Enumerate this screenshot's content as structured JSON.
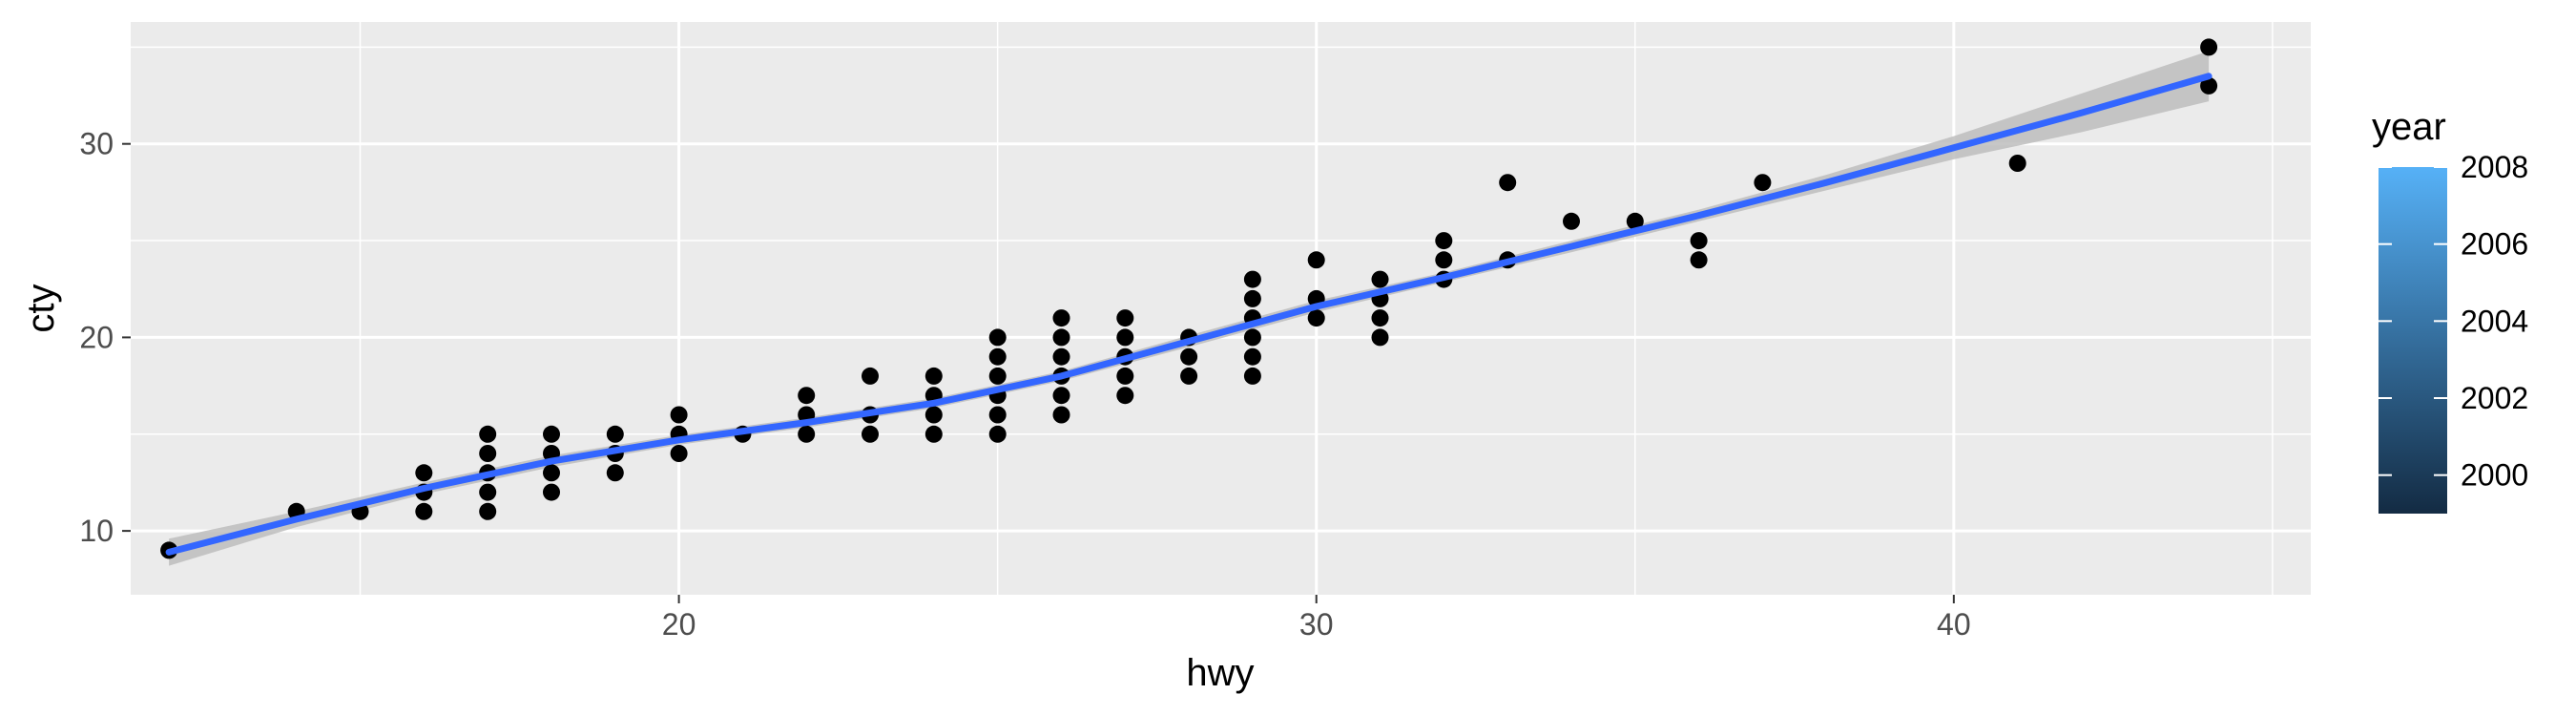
{
  "chart_data": {
    "type": "scatter",
    "xlabel": "hwy",
    "ylabel": "cty",
    "xlim": [
      11.4,
      45.6
    ],
    "ylim": [
      6.7,
      36.3
    ],
    "x_ticks": [
      20,
      30,
      40
    ],
    "y_ticks": [
      10,
      20,
      30
    ],
    "grid": true,
    "point_color": "#000000",
    "points": [
      [
        12,
        9
      ],
      [
        14,
        11
      ],
      [
        15,
        11
      ],
      [
        16,
        11
      ],
      [
        16,
        12
      ],
      [
        16,
        13
      ],
      [
        17,
        11
      ],
      [
        17,
        12
      ],
      [
        17,
        13
      ],
      [
        17,
        14
      ],
      [
        17,
        15
      ],
      [
        18,
        12
      ],
      [
        18,
        13
      ],
      [
        18,
        14
      ],
      [
        18,
        15
      ],
      [
        19,
        13
      ],
      [
        19,
        14
      ],
      [
        19,
        15
      ],
      [
        20,
        14
      ],
      [
        20,
        15
      ],
      [
        20,
        16
      ],
      [
        21,
        15
      ],
      [
        22,
        15
      ],
      [
        22,
        16
      ],
      [
        22,
        17
      ],
      [
        23,
        15
      ],
      [
        23,
        16
      ],
      [
        23,
        18
      ],
      [
        24,
        15
      ],
      [
        24,
        16
      ],
      [
        24,
        17
      ],
      [
        24,
        18
      ],
      [
        25,
        15
      ],
      [
        25,
        16
      ],
      [
        25,
        17
      ],
      [
        25,
        18
      ],
      [
        25,
        19
      ],
      [
        25,
        20
      ],
      [
        26,
        16
      ],
      [
        26,
        17
      ],
      [
        26,
        18
      ],
      [
        26,
        19
      ],
      [
        26,
        20
      ],
      [
        26,
        21
      ],
      [
        27,
        17
      ],
      [
        27,
        18
      ],
      [
        27,
        19
      ],
      [
        27,
        20
      ],
      [
        27,
        21
      ],
      [
        28,
        18
      ],
      [
        28,
        19
      ],
      [
        28,
        20
      ],
      [
        29,
        18
      ],
      [
        29,
        19
      ],
      [
        29,
        20
      ],
      [
        29,
        21
      ],
      [
        29,
        22
      ],
      [
        29,
        23
      ],
      [
        30,
        21
      ],
      [
        30,
        22
      ],
      [
        30,
        24
      ],
      [
        31,
        20
      ],
      [
        31,
        21
      ],
      [
        31,
        22
      ],
      [
        31,
        23
      ],
      [
        32,
        23
      ],
      [
        32,
        24
      ],
      [
        32,
        25
      ],
      [
        33,
        24
      ],
      [
        33,
        28
      ],
      [
        34,
        26
      ],
      [
        35,
        26
      ],
      [
        36,
        24
      ],
      [
        36,
        25
      ],
      [
        37,
        28
      ],
      [
        41,
        29
      ],
      [
        44,
        33
      ],
      [
        44,
        35
      ]
    ],
    "smooth": {
      "method": "loess",
      "color": "#3366FF",
      "ribbon_color": "#bdbdbd",
      "x": [
        12,
        14,
        16,
        18,
        20,
        22,
        24,
        26,
        28,
        30,
        32,
        34,
        36,
        38,
        40,
        42,
        44
      ],
      "y": [
        8.9,
        10.6,
        12.2,
        13.6,
        14.7,
        15.6,
        16.6,
        18.0,
        19.8,
        21.6,
        23.1,
        24.7,
        26.3,
        28.0,
        29.8,
        31.6,
        33.5
      ],
      "lower": [
        8.2,
        10.2,
        11.9,
        13.3,
        14.45,
        15.35,
        16.35,
        17.75,
        19.5,
        21.3,
        22.85,
        24.4,
        26.0,
        27.6,
        29.2,
        30.6,
        32.2
      ],
      "upper": [
        9.6,
        11.0,
        12.5,
        13.9,
        14.95,
        15.85,
        16.85,
        18.25,
        20.1,
        21.9,
        23.35,
        25.0,
        26.6,
        28.4,
        30.4,
        32.6,
        34.8
      ]
    },
    "legend": {
      "title": "year",
      "placement": "right",
      "type": "colorbar",
      "range": [
        1999,
        2008
      ],
      "ticks": [
        2000,
        2002,
        2004,
        2006,
        2008
      ],
      "color_low": "#132B43",
      "color_high": "#56B1F7"
    }
  }
}
